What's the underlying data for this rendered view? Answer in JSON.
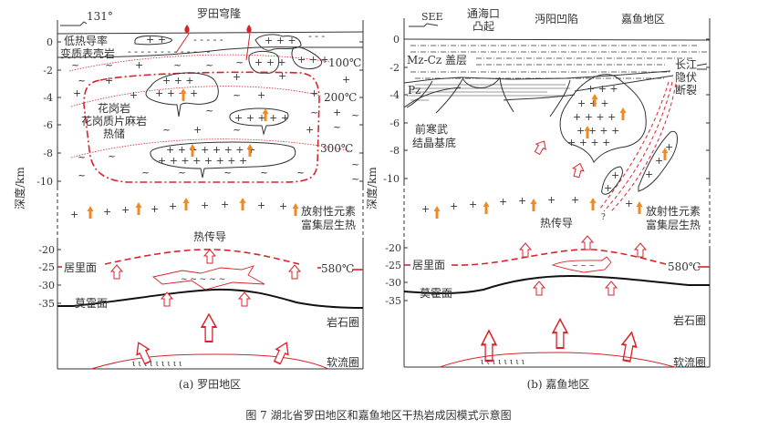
{
  "figure_caption": "图 7   湖北省罗田地区和嘉鱼地区干热岩成因模式示意图",
  "colors": {
    "temperature_red": "#d9232b",
    "heat_arrow_orange": "#f08a24",
    "line": "#333333"
  },
  "panel_a": {
    "caption": "(a) 罗田地区",
    "orientation": "131°",
    "title": "罗田穹隆",
    "y_axis_label": "深度/km",
    "upper_ticks": [
      "0",
      "-2",
      "-4",
      "-6",
      "-8",
      "-10"
    ],
    "lower_ticks": [
      "-20",
      "-25",
      "-30",
      "-35"
    ],
    "labels": {
      "low_conductivity_1": "低热导率",
      "low_conductivity_2": "变质表壳岩",
      "iso_100": "100℃",
      "iso_200": "200℃",
      "iso_300": "300℃",
      "reservoir_1": "花岗岩",
      "reservoir_2": "花岗质片麻岩",
      "reservoir_3": "热储",
      "radio_1": "放射性元素",
      "radio_2": "富集层生热",
      "conduction": "热传导",
      "curie": "居里面",
      "curie_temp": "580℃",
      "moho": "莫霍面",
      "lithosphere": "岩石圈",
      "asthenosphere": "软流圈"
    }
  },
  "panel_b": {
    "caption": "(b) 嘉鱼地区",
    "orientation": "SEE",
    "y_axis_label": "深度/km",
    "upper_ticks": [
      "0",
      "-2",
      "-4",
      "-6",
      "-8",
      "-10"
    ],
    "lower_ticks": [
      "-20",
      "-25",
      "-30",
      "-35"
    ],
    "labels": {
      "uplift_1": "通海口",
      "uplift_2": "凸起",
      "depression": "沔阳凹陷",
      "area": "嘉鱼地区",
      "cover": "Mz-Cz 盖层",
      "fault_1": "长江",
      "fault_2": "隐伏",
      "fault_3": "断裂",
      "pz": "Pz",
      "basement_1": "前寒武",
      "basement_2": "结晶基底",
      "question": "?",
      "radio_1": "放射性元素",
      "radio_2": "富集层生热",
      "conduction": "热传导",
      "curie": "居里面",
      "curie_temp": "580℃",
      "moho": "莫霍面",
      "lithosphere": "岩石圈",
      "asthenosphere": "软流圈"
    }
  }
}
